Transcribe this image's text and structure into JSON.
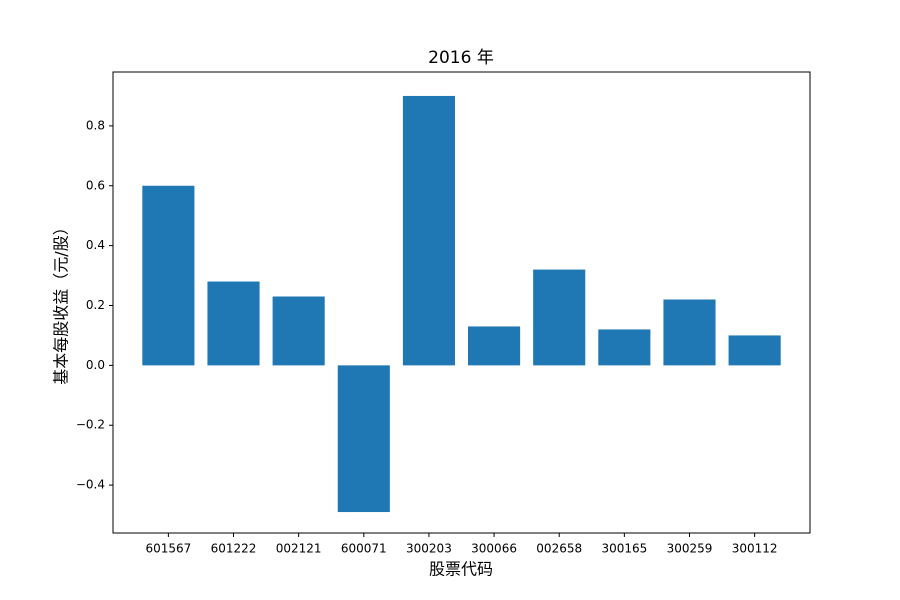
{
  "chart_data": {
    "type": "bar",
    "title": "2016 年",
    "x_label": "股票代码",
    "y_label": "基本每股收益（元/股）",
    "categories": [
      "601567",
      "601222",
      "002121",
      "600071",
      "300203",
      "300066",
      "002658",
      "300165",
      "300259",
      "300112"
    ],
    "values": [
      0.6,
      0.28,
      0.23,
      -0.49,
      0.9,
      0.13,
      0.32,
      0.12,
      0.22,
      0.1
    ],
    "color": "#1f77b4",
    "ylim": [
      -0.56,
      0.98
    ],
    "yticks": [
      {
        "value": -0.4,
        "label": "−0.4"
      },
      {
        "value": -0.2,
        "label": "−0.2"
      },
      {
        "value": 0,
        "label": "0.0"
      },
      0.2,
      0.4,
      0.6,
      0.8
    ],
    "grid": false
  }
}
